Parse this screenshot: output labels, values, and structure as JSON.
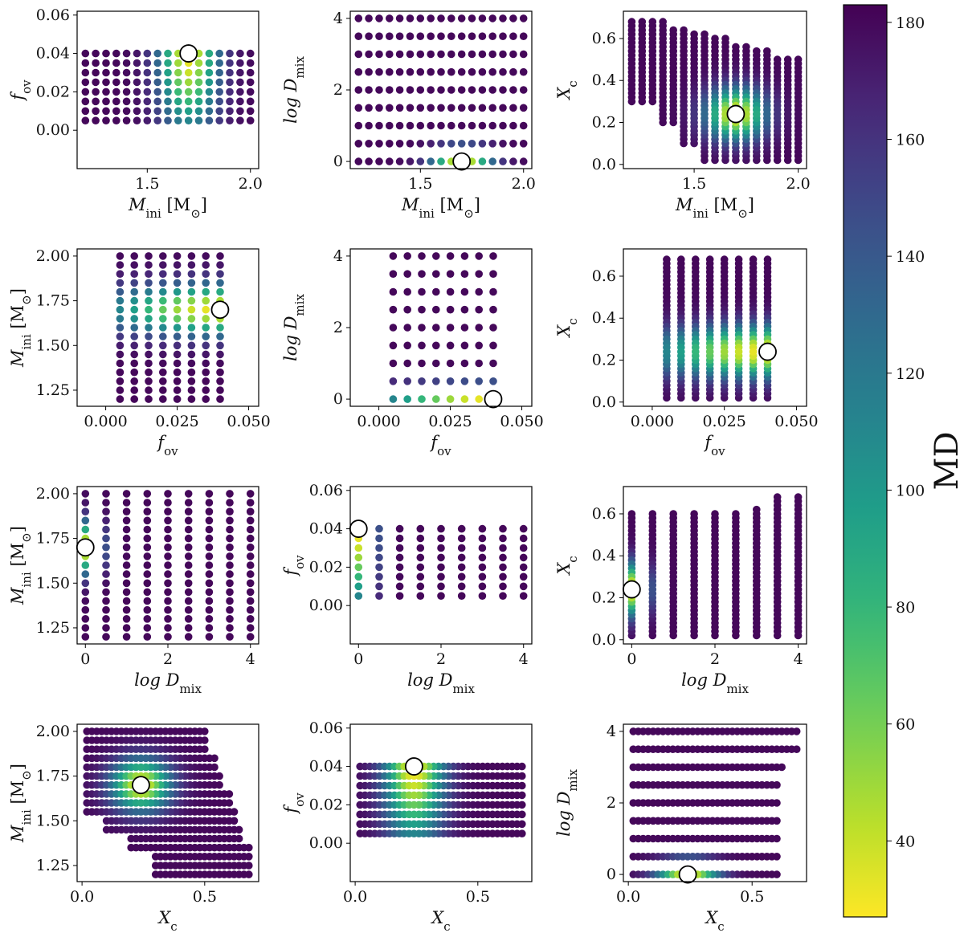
{
  "chart_data": {
    "type": "scatter",
    "title": "",
    "colormap": "viridis_r",
    "colorbar": {
      "label": "MD",
      "range": [
        27,
        183
      ],
      "ticks": [
        40,
        60,
        80,
        100,
        120,
        140,
        160,
        180
      ],
      "tick_labels": [
        "40",
        "60",
        "80",
        "100",
        "120",
        "140",
        "160",
        "180"
      ]
    },
    "best_fit": {
      "M": 1.7,
      "f": 0.04,
      "D": 0,
      "X": 0.24
    },
    "parameters": {
      "M": {
        "label": "M",
        "sub": "ini",
        "unit": " [M",
        "unit_end": "]",
        "values": [
          1.2,
          1.25,
          1.3,
          1.35,
          1.4,
          1.45,
          1.5,
          1.55,
          1.6,
          1.65,
          1.7,
          1.75,
          1.8,
          1.85,
          1.9,
          1.95,
          2.0
        ],
        "xc_max": [
          0.68,
          0.68,
          0.68,
          0.68,
          0.65,
          0.65,
          0.62,
          0.62,
          0.6,
          0.6,
          0.57,
          0.57,
          0.54,
          0.54,
          0.5,
          0.5,
          0.5
        ]
      },
      "f": {
        "label": "f",
        "sub": "ov",
        "unit": "",
        "unit_end": "",
        "values": [
          0.005,
          0.01,
          0.015,
          0.02,
          0.025,
          0.03,
          0.035,
          0.04
        ]
      },
      "D": {
        "label": "log D",
        "sub": "mix",
        "unit": "",
        "unit_end": "",
        "values": [
          0,
          0.5,
          1,
          1.5,
          2,
          2.5,
          3,
          3.5,
          4
        ],
        "xc_max": [
          0.6,
          0.6,
          0.6,
          0.6,
          0.6,
          0.6,
          0.62,
          0.68,
          0.68
        ]
      },
      "X": {
        "label": "X",
        "sub": "c",
        "unit": "",
        "unit_end": "",
        "values": [
          0.02,
          0.04,
          0.06,
          0.08,
          0.1,
          0.12,
          0.14,
          0.16,
          0.18,
          0.2,
          0.22,
          0.24,
          0.26,
          0.28,
          0.3,
          0.32,
          0.34,
          0.36,
          0.38,
          0.4,
          0.42,
          0.44,
          0.46,
          0.48,
          0.5,
          0.52,
          0.54,
          0.56,
          0.58,
          0.6,
          0.62,
          0.64,
          0.66,
          0.68
        ]
      }
    },
    "panels": [
      {
        "row": 0,
        "col": 0,
        "x": "M",
        "y": "f",
        "xlim": [
          1.16,
          2.04
        ],
        "ylim": [
          -0.02,
          0.062
        ],
        "xticks": [
          1.5,
          2.0
        ],
        "xtick_labels": [
          "1.5",
          "2.0"
        ],
        "yticks": [
          0,
          0.02,
          0.04,
          0.06
        ],
        "ytick_labels": [
          "0.00",
          "0.02",
          "0.04",
          "0.06"
        ]
      },
      {
        "row": 0,
        "col": 1,
        "x": "M",
        "y": "D",
        "xlim": [
          1.16,
          2.04
        ],
        "ylim": [
          -0.2,
          4.2
        ],
        "xticks": [
          1.5,
          2.0
        ],
        "xtick_labels": [
          "1.5",
          "2.0"
        ],
        "yticks": [
          0,
          2,
          4
        ],
        "ytick_labels": [
          "0",
          "2",
          "4"
        ]
      },
      {
        "row": 0,
        "col": 2,
        "x": "M",
        "y": "X",
        "xlim": [
          1.16,
          2.04
        ],
        "ylim": [
          -0.02,
          0.73
        ],
        "xticks": [
          1.5,
          2.0
        ],
        "xtick_labels": [
          "1.5",
          "2.0"
        ],
        "yticks": [
          0,
          0.2,
          0.4,
          0.6
        ],
        "ytick_labels": [
          "0.0",
          "0.2",
          "0.4",
          "0.6"
        ]
      },
      {
        "row": 1,
        "col": 0,
        "x": "f",
        "y": "M",
        "xlim": [
          -0.01,
          0.0535
        ],
        "ylim": [
          1.16,
          2.04
        ],
        "xticks": [
          0,
          0.025,
          0.05
        ],
        "xtick_labels": [
          "0.000",
          "0.025",
          "0.050"
        ],
        "yticks": [
          1.25,
          1.5,
          1.75,
          2.0
        ],
        "ytick_labels": [
          "1.25",
          "1.50",
          "1.75",
          "2.00"
        ]
      },
      {
        "row": 1,
        "col": 1,
        "x": "f",
        "y": "D",
        "xlim": [
          -0.01,
          0.0535
        ],
        "ylim": [
          -0.2,
          4.2
        ],
        "xticks": [
          0,
          0.025,
          0.05
        ],
        "xtick_labels": [
          "0.000",
          "0.025",
          "0.050"
        ],
        "yticks": [
          0,
          2,
          4
        ],
        "ytick_labels": [
          "0",
          "2",
          "4"
        ]
      },
      {
        "row": 1,
        "col": 2,
        "x": "f",
        "y": "X",
        "xlim": [
          -0.01,
          0.0535
        ],
        "ylim": [
          -0.02,
          0.73
        ],
        "xticks": [
          0,
          0.025,
          0.05
        ],
        "xtick_labels": [
          "0.000",
          "0.025",
          "0.050"
        ],
        "yticks": [
          0,
          0.2,
          0.4,
          0.6
        ],
        "ytick_labels": [
          "0.0",
          "0.2",
          "0.4",
          "0.6"
        ]
      },
      {
        "row": 2,
        "col": 0,
        "x": "D",
        "y": "M",
        "xlim": [
          -0.2,
          4.2
        ],
        "ylim": [
          1.16,
          2.04
        ],
        "xticks": [
          0,
          2,
          4
        ],
        "xtick_labels": [
          "0",
          "2",
          "4"
        ],
        "yticks": [
          1.25,
          1.5,
          1.75,
          2.0
        ],
        "ytick_labels": [
          "1.25",
          "1.50",
          "1.75",
          "2.00"
        ]
      },
      {
        "row": 2,
        "col": 1,
        "x": "D",
        "y": "f",
        "xlim": [
          -0.2,
          4.2
        ],
        "ylim": [
          -0.02,
          0.062
        ],
        "xticks": [
          0,
          2,
          4
        ],
        "xtick_labels": [
          "0",
          "2",
          "4"
        ],
        "yticks": [
          0,
          0.02,
          0.04,
          0.06
        ],
        "ytick_labels": [
          "0.00",
          "0.02",
          "0.04",
          "0.06"
        ]
      },
      {
        "row": 2,
        "col": 2,
        "x": "D",
        "y": "X",
        "xlim": [
          -0.2,
          4.2
        ],
        "ylim": [
          -0.02,
          0.73
        ],
        "xticks": [
          0,
          2,
          4
        ],
        "xtick_labels": [
          "0",
          "2",
          "4"
        ],
        "yticks": [
          0,
          0.2,
          0.4,
          0.6
        ],
        "ytick_labels": [
          "0.0",
          "0.2",
          "0.4",
          "0.6"
        ]
      },
      {
        "row": 3,
        "col": 0,
        "x": "X",
        "y": "M",
        "xlim": [
          -0.02,
          0.72
        ],
        "ylim": [
          1.16,
          2.04
        ],
        "xticks": [
          0,
          0.5
        ],
        "xtick_labels": [
          "0.0",
          "0.5"
        ],
        "yticks": [
          1.25,
          1.5,
          1.75,
          2.0
        ],
        "ytick_labels": [
          "1.25",
          "1.50",
          "1.75",
          "2.00"
        ]
      },
      {
        "row": 3,
        "col": 1,
        "x": "X",
        "y": "f",
        "xlim": [
          -0.02,
          0.72
        ],
        "ylim": [
          -0.02,
          0.062
        ],
        "xticks": [
          0,
          0.5
        ],
        "xtick_labels": [
          "0.0",
          "0.5"
        ],
        "yticks": [
          0,
          0.02,
          0.04,
          0.06
        ],
        "ytick_labels": [
          "0.00",
          "0.02",
          "0.04",
          "0.06"
        ]
      },
      {
        "row": 3,
        "col": 2,
        "x": "X",
        "y": "D",
        "xlim": [
          -0.02,
          0.72
        ],
        "ylim": [
          -0.2,
          4.2
        ],
        "xticks": [
          0,
          0.5
        ],
        "xtick_labels": [
          "0.0",
          "0.5"
        ],
        "yticks": [
          0,
          2,
          4
        ],
        "ytick_labels": [
          "0",
          "2",
          "4"
        ]
      }
    ]
  }
}
